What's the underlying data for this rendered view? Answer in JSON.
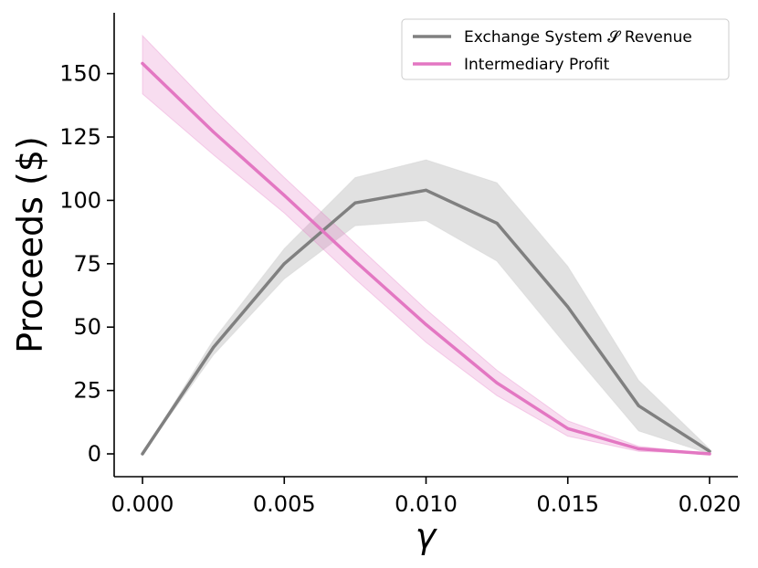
{
  "chart_data": {
    "type": "line",
    "xlabel": "γ",
    "ylabel": "Proceeds ($)",
    "xlim": [
      -0.001,
      0.021
    ],
    "ylim": [
      -9,
      174
    ],
    "xticks": [
      "0.000",
      "0.005",
      "0.010",
      "0.015",
      "0.020"
    ],
    "xtick_values": [
      0.0,
      0.005,
      0.01,
      0.015,
      0.02
    ],
    "yticks": [
      "0",
      "25",
      "50",
      "75",
      "100",
      "125",
      "150"
    ],
    "ytick_values": [
      0,
      25,
      50,
      75,
      100,
      125,
      150
    ],
    "grid": false,
    "legend_position": "top-right",
    "x": [
      0.0,
      0.0025,
      0.005,
      0.0075,
      0.01,
      0.0125,
      0.015,
      0.0175,
      0.02
    ],
    "series": [
      {
        "name": "Exchange System 𝓢 Revenue",
        "color": "#808080",
        "band_color": "#c8c8c8",
        "values": [
          0,
          42,
          75,
          99,
          104,
          91,
          58,
          19,
          1
        ],
        "lower": [
          0,
          39,
          69,
          90,
          92,
          76,
          42,
          9,
          0
        ],
        "upper": [
          0,
          45,
          81,
          109,
          116,
          107,
          74,
          29,
          2
        ]
      },
      {
        "name": "Intermediary Profit",
        "color": "#e377c2",
        "band_color": "#e377c2",
        "values": [
          154,
          127,
          102,
          76,
          51,
          28,
          10,
          2,
          0
        ],
        "lower": [
          142,
          118,
          95,
          69,
          44,
          23,
          7,
          1,
          0
        ],
        "upper": [
          165,
          136,
          109,
          83,
          57,
          33,
          13,
          3,
          0
        ]
      }
    ]
  }
}
